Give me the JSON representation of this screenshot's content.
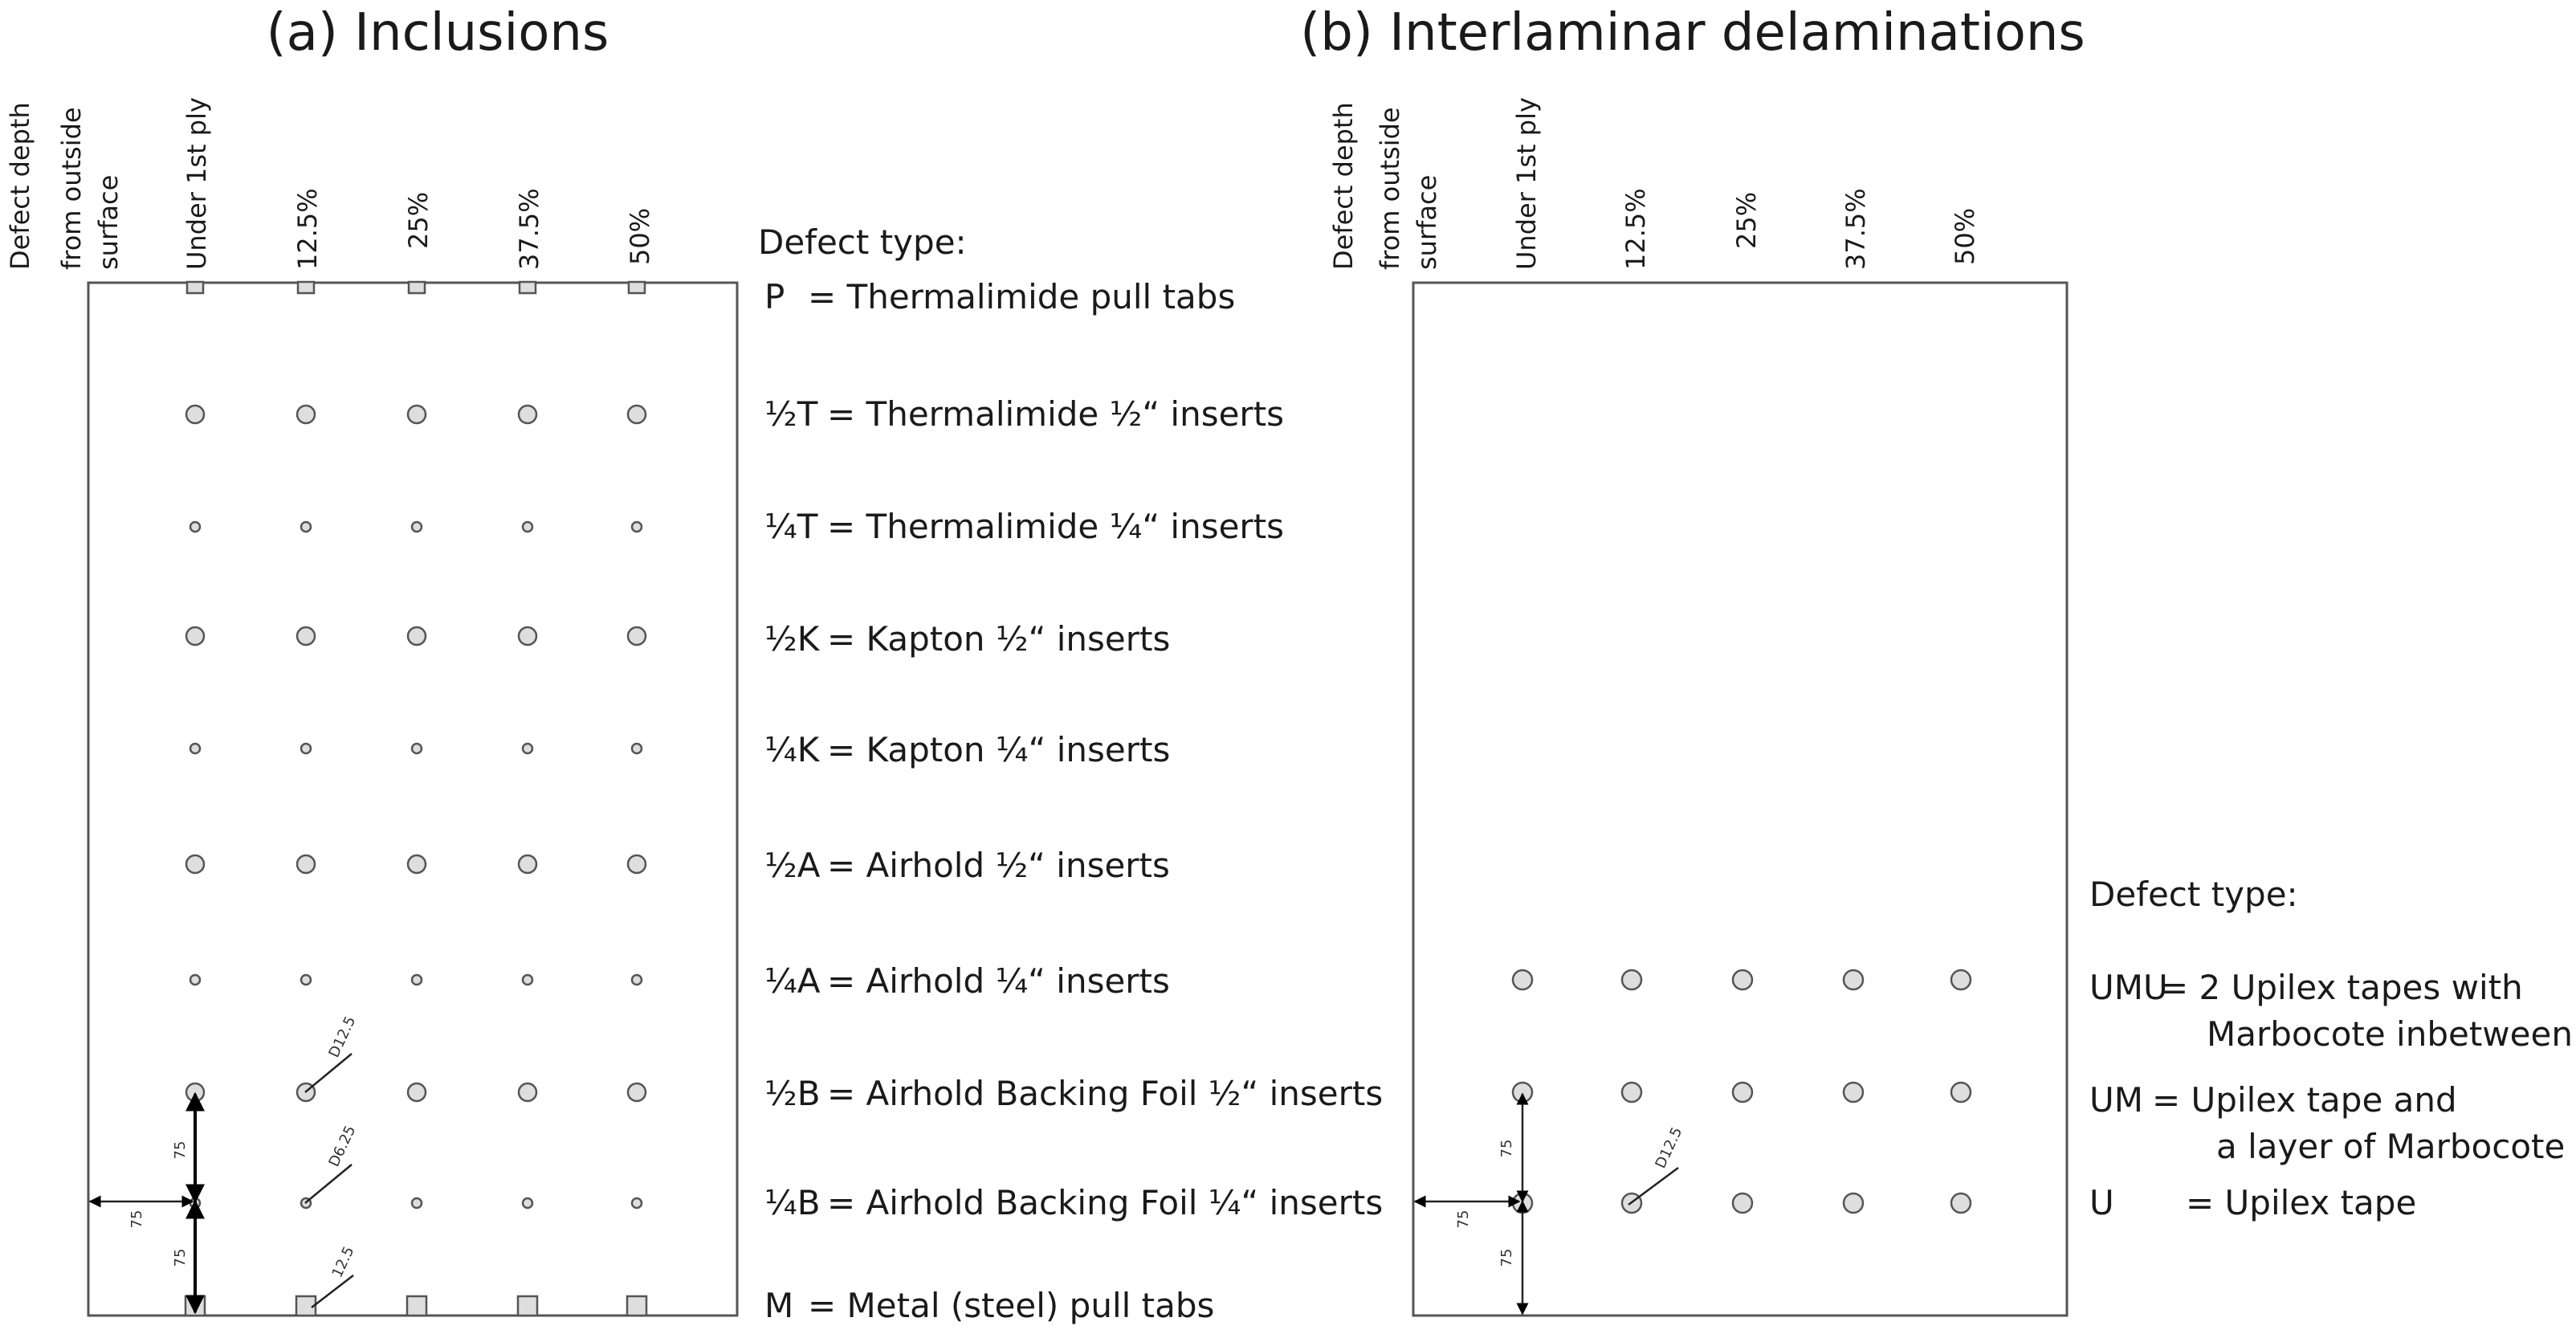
{
  "panel_a": {
    "title": "(a) Inclusions",
    "depth_header": [
      "Defect depth",
      "from outside",
      "surface"
    ],
    "columns": [
      "Under 1st ply",
      "12.5%",
      "25%",
      "37.5%",
      "50%"
    ],
    "legend_heading": "Defect type:",
    "rows": [
      {
        "code": "P",
        "eq": "=",
        "desc": "Thermalimide pull tabs",
        "shape": "square-small",
        "sizes": [
          1,
          1,
          1,
          1,
          1
        ]
      },
      {
        "code": "½T",
        "eq": "=",
        "desc": "Thermalimide ½“ inserts",
        "shape": "circle",
        "sizes": [
          1,
          1,
          1,
          1,
          1
        ]
      },
      {
        "code": "¼T",
        "eq": "=",
        "desc": "Thermalimide ¼“ inserts",
        "shape": "circle-small",
        "sizes": [
          1,
          1,
          1,
          1,
          1
        ]
      },
      {
        "code": "½K",
        "eq": "=",
        "desc": "Kapton ½“ inserts",
        "shape": "circle",
        "sizes": [
          1,
          1,
          1,
          1,
          1
        ]
      },
      {
        "code": "¼K",
        "eq": "=",
        "desc": "Kapton ¼“ inserts",
        "shape": "circle-small",
        "sizes": [
          1,
          1,
          1,
          1,
          1
        ]
      },
      {
        "code": "½A",
        "eq": "=",
        "desc": "Airhold ½“ inserts",
        "shape": "circle",
        "sizes": [
          1,
          1,
          1,
          1,
          1
        ]
      },
      {
        "code": "¼A",
        "eq": "=",
        "desc": "Airhold ¼“ inserts",
        "shape": "circle-small",
        "sizes": [
          1,
          1,
          1,
          1,
          1
        ]
      },
      {
        "code": "½B",
        "eq": "=",
        "desc": "Airhold Backing Foil ½“ inserts",
        "shape": "circle",
        "sizes": [
          1,
          1,
          1,
          1,
          1
        ]
      },
      {
        "code": "¼B",
        "eq": "=",
        "desc": "Airhold Backing Foil ¼“ inserts",
        "shape": "circle-small",
        "sizes": [
          1,
          1,
          1,
          1,
          1
        ]
      },
      {
        "code": "M",
        "eq": "=",
        "desc": "Metal (steel) pull tabs",
        "shape": "square",
        "sizes": [
          1,
          1,
          1,
          1,
          1
        ]
      }
    ],
    "dimensions": {
      "spacing_v1": "75",
      "spacing_v2": "75",
      "spacing_h": "75",
      "d_half": "D12.5",
      "d_quarter": "D6.25",
      "tab_width": "12.5"
    }
  },
  "panel_b": {
    "title": "(b) Interlaminar delaminations",
    "depth_header": [
      "Defect depth",
      "from outside",
      "surface"
    ],
    "columns": [
      "Under 1st ply",
      "12.5%",
      "25%",
      "37.5%",
      "50%"
    ],
    "legend_heading": "Defect type:",
    "rows": [
      {
        "code": "UMU",
        "eq": "=",
        "desc_lines": [
          "2 Upilex tapes with",
          "Marbocote inbetween"
        ]
      },
      {
        "code": "UM",
        "eq": "=",
        "desc_lines": [
          "Upilex tape and",
          "a layer of Marbocote"
        ]
      },
      {
        "code": "U",
        "eq": "=",
        "desc_lines": [
          "Upilex tape"
        ]
      }
    ],
    "dimensions": {
      "spacing_v1": "75",
      "spacing_v2": "75",
      "spacing_h": "75",
      "diameter": "D12.5"
    }
  }
}
